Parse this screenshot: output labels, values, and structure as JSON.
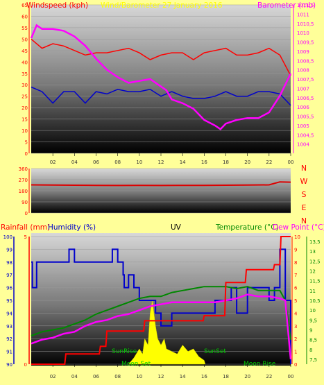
{
  "colors": {
    "background": "#ffff99",
    "wind": "#ff0000",
    "gust": "#0000cc",
    "barometer": "#ff00ff",
    "direction": "#dd0000",
    "humidity": "#0000cc",
    "temperature": "#008800",
    "dewpoint": "#ff00ff",
    "rain": "#ff0000",
    "uv": "#ffff00",
    "uv_label_red": "#ff0000",
    "compass": "#ff0000",
    "label_green": "#008800"
  },
  "chart_data": [
    {
      "type": "line",
      "title": "Wind/Barometer 27 January 2016",
      "left_axis_label": "Windspeed (kph)",
      "right_axis_label": "Barometer (mb)",
      "ylim_left": [
        0,
        65
      ],
      "ylim_right": [
        1003.5,
        1011.5
      ],
      "left_ticks": [
        "0",
        "5",
        "10",
        "15",
        "20",
        "25",
        "30",
        "35",
        "40",
        "45",
        "50",
        "55",
        "60",
        "65"
      ],
      "right_ticks": [
        "1004",
        "1004,5",
        "1005",
        "1005,5",
        "1006",
        "1006,5",
        "1007",
        "1007,5",
        "1008",
        "1008,5",
        "1009",
        "1009,5",
        "1010",
        "1010,5",
        "1011",
        "1011,5"
      ],
      "x_ticks": [
        "02",
        "04",
        "06",
        "08",
        "10",
        "12",
        "14",
        "16",
        "18",
        "20",
        "22",
        "00"
      ],
      "series": [
        {
          "axis": "left",
          "x": [
            0,
            1,
            2,
            3,
            4,
            5,
            6,
            7,
            8,
            9,
            10,
            11,
            12,
            13,
            14,
            15,
            16,
            17,
            18,
            19,
            20,
            21,
            22,
            23,
            24
          ],
          "values": [
            50,
            46,
            48,
            47,
            45,
            43,
            44,
            44,
            45,
            46,
            44,
            41,
            43,
            44,
            44,
            41,
            44,
            45,
            46,
            43,
            43,
            44,
            46,
            43,
            34
          ]
        },
        {
          "axis": "left",
          "x": [
            0,
            1,
            2,
            3,
            4,
            5,
            6,
            7,
            8,
            9,
            10,
            11,
            12,
            13,
            14,
            15,
            16,
            17,
            18,
            19,
            20,
            21,
            22,
            23,
            24
          ],
          "values": [
            29,
            27,
            22,
            27,
            27,
            22,
            27,
            26,
            28,
            27,
            27,
            28,
            25,
            27,
            25,
            24,
            24,
            25,
            27,
            25,
            25,
            27,
            27,
            26,
            21
          ]
        },
        {
          "axis": "right",
          "x": [
            0,
            0.5,
            1,
            2,
            3,
            4,
            5,
            6,
            7,
            8,
            9,
            10,
            11,
            12,
            12.5,
            13,
            14,
            15,
            16,
            17,
            17.5,
            18,
            19,
            20,
            21,
            22,
            23,
            23.5,
            24
          ],
          "values": [
            1009.7,
            1010.4,
            1010.2,
            1010.2,
            1010.1,
            1009.8,
            1009.3,
            1008.6,
            1008.0,
            1007.6,
            1007.3,
            1007.4,
            1007.5,
            1007.1,
            1006.9,
            1006.4,
            1006.2,
            1005.9,
            1005.3,
            1005.0,
            1004.8,
            1005.1,
            1005.3,
            1005.4,
            1005.4,
            1005.7,
            1006.6,
            1007.2,
            1007.8
          ]
        }
      ]
    },
    {
      "type": "line",
      "compass_labels": [
        "N",
        "W",
        "S",
        "E",
        "N"
      ],
      "ylim": [
        0,
        360
      ],
      "y_ticks": [
        "0",
        "90",
        "180",
        "270",
        "360"
      ],
      "series": [
        {
          "x": [
            0,
            2,
            4,
            6,
            8,
            10,
            12,
            14,
            16,
            18,
            20,
            22,
            23,
            24
          ],
          "values": [
            228,
            226,
            225,
            224,
            223,
            224,
            223,
            224,
            224,
            225,
            226,
            228,
            252,
            250
          ]
        }
      ]
    },
    {
      "type": "line",
      "rain_label": "Rainfall (mm)",
      "humidity_label": "Humidity (%)",
      "uv_label": "UV",
      "temperature_label": "Temperature (°C)",
      "dewpoint_label": "Dew Point (°C)",
      "rain_ticks": [
        "0",
        "5"
      ],
      "humidity_ticks": [
        "90",
        "91",
        "92",
        "93",
        "94",
        "95",
        "96",
        "97",
        "98",
        "99",
        "100"
      ],
      "uv_ticks": [
        "0",
        "1",
        "2",
        "3",
        "4",
        "5",
        "6",
        "7",
        "8",
        "9",
        "10"
      ],
      "temp_ticks": [
        "7,5",
        "8",
        "8,5",
        "9",
        "9,5",
        "10",
        "10,5",
        "11",
        "11,5",
        "12",
        "12,5",
        "13",
        "13,5"
      ],
      "x_ticks": [
        "02",
        "04",
        "06",
        "08",
        "10",
        "12",
        "14",
        "16",
        "18",
        "20",
        "22",
        "00"
      ],
      "annotations": [
        "SunRise",
        "Moon Set",
        "SunSet",
        "Moon Rise"
      ],
      "ylim_humidity": [
        90,
        100
      ],
      "ylim_temp": [
        7.25,
        13.75
      ],
      "ylim_rain": [
        0,
        5
      ],
      "series": [
        {
          "name": "humidity",
          "x": [
            0,
            0.1,
            0.5,
            3,
            3.5,
            4,
            7,
            7.5,
            8,
            8.5,
            8.6,
            9,
            9.5,
            10,
            11,
            11.5,
            12,
            13,
            14,
            15,
            16,
            17,
            18,
            18.5,
            19,
            20,
            21,
            22,
            22.5,
            23,
            23.5,
            24
          ],
          "values": [
            98,
            96,
            98,
            98,
            99,
            98,
            98,
            99,
            98,
            97,
            96,
            97,
            96,
            95,
            95,
            94,
            93,
            94,
            94,
            94,
            94,
            95,
            95,
            96,
            94,
            96,
            96,
            95,
            96,
            99,
            95,
            90
          ]
        },
        {
          "name": "temperature",
          "x": [
            0,
            1,
            2,
            3,
            4,
            5,
            6,
            7,
            8,
            9,
            10,
            11,
            12,
            13,
            14,
            15,
            16,
            17,
            18,
            19,
            20,
            21,
            22,
            23,
            23.5,
            24
          ],
          "values": [
            8.7,
            8.9,
            9.0,
            9.1,
            9.3,
            9.5,
            9.8,
            10.0,
            10.2,
            10.4,
            10.6,
            10.7,
            10.7,
            10.9,
            11.0,
            11.1,
            11.2,
            11.2,
            11.2,
            11.1,
            11.2,
            11.0,
            11.0,
            11.0,
            10.5,
            8.5
          ]
        },
        {
          "name": "dewpoint",
          "x": [
            0,
            1,
            2,
            3,
            4,
            5,
            6,
            7,
            8,
            9,
            10,
            11,
            12,
            13,
            14,
            15,
            16,
            17,
            18,
            19,
            20,
            21,
            22,
            23,
            23.5,
            24
          ],
          "values": [
            8.3,
            8.5,
            8.6,
            8.8,
            8.9,
            9.2,
            9.4,
            9.5,
            9.7,
            9.8,
            10.0,
            10.2,
            10.3,
            10.4,
            10.4,
            10.4,
            10.4,
            10.4,
            10.5,
            10.6,
            10.8,
            10.7,
            10.7,
            10.6,
            10.5,
            7.5
          ]
        },
        {
          "name": "rain",
          "x": [
            0,
            3.1,
            3.2,
            6.3,
            6.4,
            6.9,
            7.0,
            10.4,
            10.5,
            15.9,
            16.0,
            17.9,
            18.0,
            19.8,
            19.9,
            22.4,
            22.5,
            23.0,
            23.1,
            24
          ],
          "values": [
            0,
            0,
            0.4,
            0.4,
            0.7,
            0.7,
            1.3,
            1.3,
            1.7,
            1.7,
            1.9,
            1.9,
            3.2,
            3.2,
            3.7,
            3.7,
            3.9,
            3.9,
            5.0,
            5.0
          ]
        },
        {
          "name": "uv",
          "x": [
            9,
            9.5,
            10,
            10.3,
            10.5,
            10.8,
            11,
            11.2,
            11.5,
            11.7,
            12,
            12.3,
            12.5,
            13,
            13.5,
            14,
            14.5,
            15,
            15.5,
            16,
            16.1
          ],
          "values": [
            0,
            0.5,
            1.2,
            0.8,
            2,
            1.5,
            4,
            5,
            3,
            2,
            1.5,
            2,
            1.2,
            1,
            0.8,
            1.5,
            1,
            1.2,
            0.6,
            0.3,
            0
          ]
        }
      ]
    }
  ]
}
